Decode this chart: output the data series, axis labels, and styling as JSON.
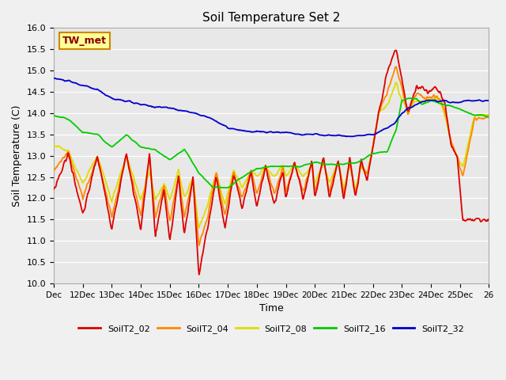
{
  "title": "Soil Temperature Set 2",
  "xlabel": "Time",
  "ylabel": "Soil Temperature (C)",
  "ylim": [
    10.0,
    16.0
  ],
  "yticks": [
    10.0,
    10.5,
    11.0,
    11.5,
    12.0,
    12.5,
    13.0,
    13.5,
    14.0,
    14.5,
    15.0,
    15.5,
    16.0
  ],
  "xtick_labels": [
    "Dec",
    "12Dec",
    "13Dec",
    "14Dec",
    "15Dec",
    "16Dec",
    "17Dec",
    "18Dec",
    "19Dec",
    "20Dec",
    "21Dec",
    "22Dec",
    "23Dec",
    "24Dec",
    "25Dec",
    "26"
  ],
  "colors": {
    "SoilT2_02": "#dd0000",
    "SoilT2_04": "#ff8800",
    "SoilT2_08": "#dddd00",
    "SoilT2_16": "#00cc00",
    "SoilT2_32": "#0000cc"
  },
  "bg_color": "#e8e8e8",
  "plot_bg": "#f0f0f0",
  "legend_label": "TW_met",
  "legend_box_color": "#ffff99",
  "legend_box_border": "#cc8800"
}
